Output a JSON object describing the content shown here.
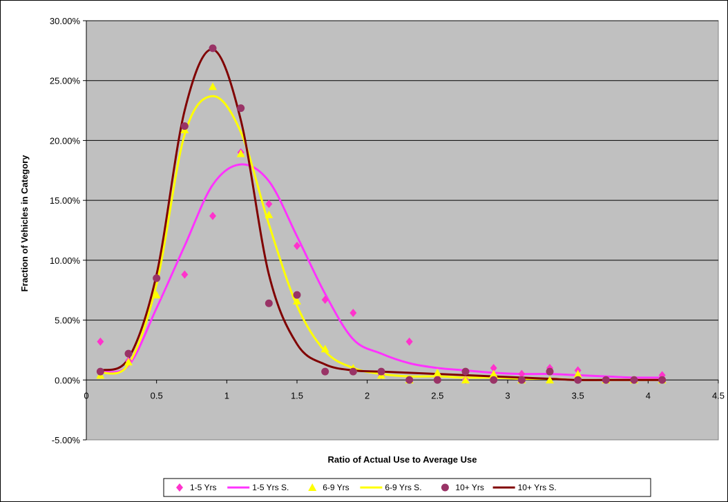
{
  "chart_data": {
    "type": "scatter",
    "title": "",
    "xlabel": "Ratio of Actual Use to Average Use",
    "ylabel": "Fraction of Vehicles in Category",
    "xlim": [
      0,
      4.5
    ],
    "ylim": [
      -0.05,
      0.3
    ],
    "x_ticks": [
      0,
      0.5,
      1,
      1.5,
      2,
      2.5,
      3,
      3.5,
      4,
      4.5
    ],
    "x_tick_labels": [
      "0",
      "0.5",
      "1",
      "1.5",
      "2",
      "2.5",
      "3",
      "3.5",
      "4",
      "4.5"
    ],
    "y_ticks": [
      -0.05,
      0,
      0.05,
      0.1,
      0.15,
      0.2,
      0.25,
      0.3
    ],
    "y_tick_labels": [
      "-5.00%",
      "0.00%",
      "5.00%",
      "10.00%",
      "15.00%",
      "20.00%",
      "25.00%",
      "30.00%"
    ],
    "grid": "horizontal",
    "plot_background": "#c0c0c0",
    "legend_position": "bottom",
    "x": [
      0.1,
      0.3,
      0.5,
      0.7,
      0.9,
      1.1,
      1.3,
      1.5,
      1.7,
      1.9,
      2.1,
      2.3,
      2.5,
      2.7,
      2.9,
      3.1,
      3.3,
      3.5,
      3.7,
      3.9,
      4.1
    ],
    "series": [
      {
        "name": "1-5 Yrs",
        "kind": "points",
        "marker": "diamond",
        "color": "#ff33cc",
        "values": [
          0.032,
          0.016,
          0.085,
          0.088,
          0.137,
          0.19,
          0.147,
          0.112,
          0.067,
          0.056,
          0.004,
          0.032,
          0.004,
          0.0,
          0.01,
          0.005,
          0.01,
          0.008,
          0.0,
          0.0,
          0.004
        ]
      },
      {
        "name": "1-5 Yrs S.",
        "kind": "line",
        "color": "#ff33ff",
        "values": [
          0.007,
          0.012,
          0.06,
          0.112,
          0.163,
          0.18,
          0.166,
          0.12,
          0.072,
          0.034,
          0.022,
          0.014,
          0.01,
          0.008,
          0.006,
          0.005,
          0.005,
          0.004,
          0.003,
          0.002,
          0.002
        ]
      },
      {
        "name": "6-9 Yrs",
        "kind": "points",
        "marker": "triangle",
        "color": "#ffff00",
        "values": [
          0.004,
          0.015,
          0.071,
          0.209,
          0.245,
          0.189,
          0.138,
          0.066,
          0.026,
          0.01,
          0.004,
          0.0,
          0.006,
          0.0,
          0.005,
          0.0,
          0.0,
          0.005,
          0.0,
          0.0,
          0.0
        ]
      },
      {
        "name": "6-9 Yrs S.",
        "kind": "line",
        "color": "#ffff00",
        "values": [
          0.006,
          0.013,
          0.08,
          0.205,
          0.237,
          0.207,
          0.13,
          0.062,
          0.024,
          0.01,
          0.005,
          0.003,
          0.003,
          0.002,
          0.002,
          0.001,
          0.001,
          0.0,
          0.0,
          0.0,
          0.0
        ]
      },
      {
        "name": "10+ Yrs",
        "kind": "points",
        "marker": "circle",
        "color": "#993366",
        "values": [
          0.007,
          0.022,
          0.085,
          0.212,
          0.277,
          0.227,
          0.064,
          0.071,
          0.007,
          0.007,
          0.007,
          0.0,
          0.0,
          0.007,
          0.0,
          0.0,
          0.007,
          0.0,
          0.0,
          0.0,
          0.0
        ]
      },
      {
        "name": "10+ Yrs S.",
        "kind": "line",
        "color": "#800000",
        "values": [
          0.008,
          0.018,
          0.088,
          0.225,
          0.276,
          0.217,
          0.088,
          0.03,
          0.013,
          0.008,
          0.007,
          0.006,
          0.005,
          0.004,
          0.003,
          0.002,
          0.001,
          0.0,
          0.0,
          0.0,
          0.0
        ]
      }
    ]
  }
}
